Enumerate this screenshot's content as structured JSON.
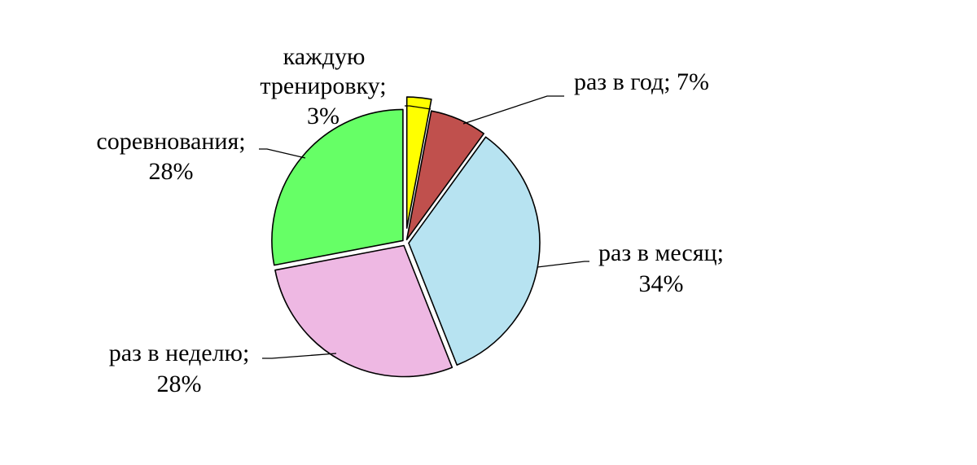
{
  "chart_data": {
    "type": "pie",
    "title": "",
    "slices": [
      {
        "label": "каждую тренировку",
        "value": 3,
        "value_text": "3%",
        "color": "#ffff00",
        "exploded": true
      },
      {
        "label": "раз в год",
        "value": 7,
        "value_text": "7%",
        "color": "#c0504d",
        "exploded": false
      },
      {
        "label": "раз в месяц",
        "value": 34,
        "value_text": "34%",
        "color": "#b7e3f1",
        "exploded": false
      },
      {
        "label": "раз в неделю",
        "value": 28,
        "value_text": "28%",
        "color": "#eeb8e3",
        "exploded": false
      },
      {
        "label": "соревнования",
        "value": 28,
        "value_text": "28%",
        "color": "#66ff66",
        "exploded": false
      }
    ],
    "data_labels": [
      {
        "lines": [
          "каждую",
          "тренировку;",
          "3%"
        ]
      },
      {
        "lines": [
          "раз в год; 7%"
        ]
      },
      {
        "lines": [
          "раз в месяц;",
          "34%"
        ]
      },
      {
        "lines": [
          "раз в неделю;",
          "28%"
        ]
      },
      {
        "lines": [
          "соревнования;",
          "28%"
        ]
      }
    ],
    "legend": "none"
  }
}
